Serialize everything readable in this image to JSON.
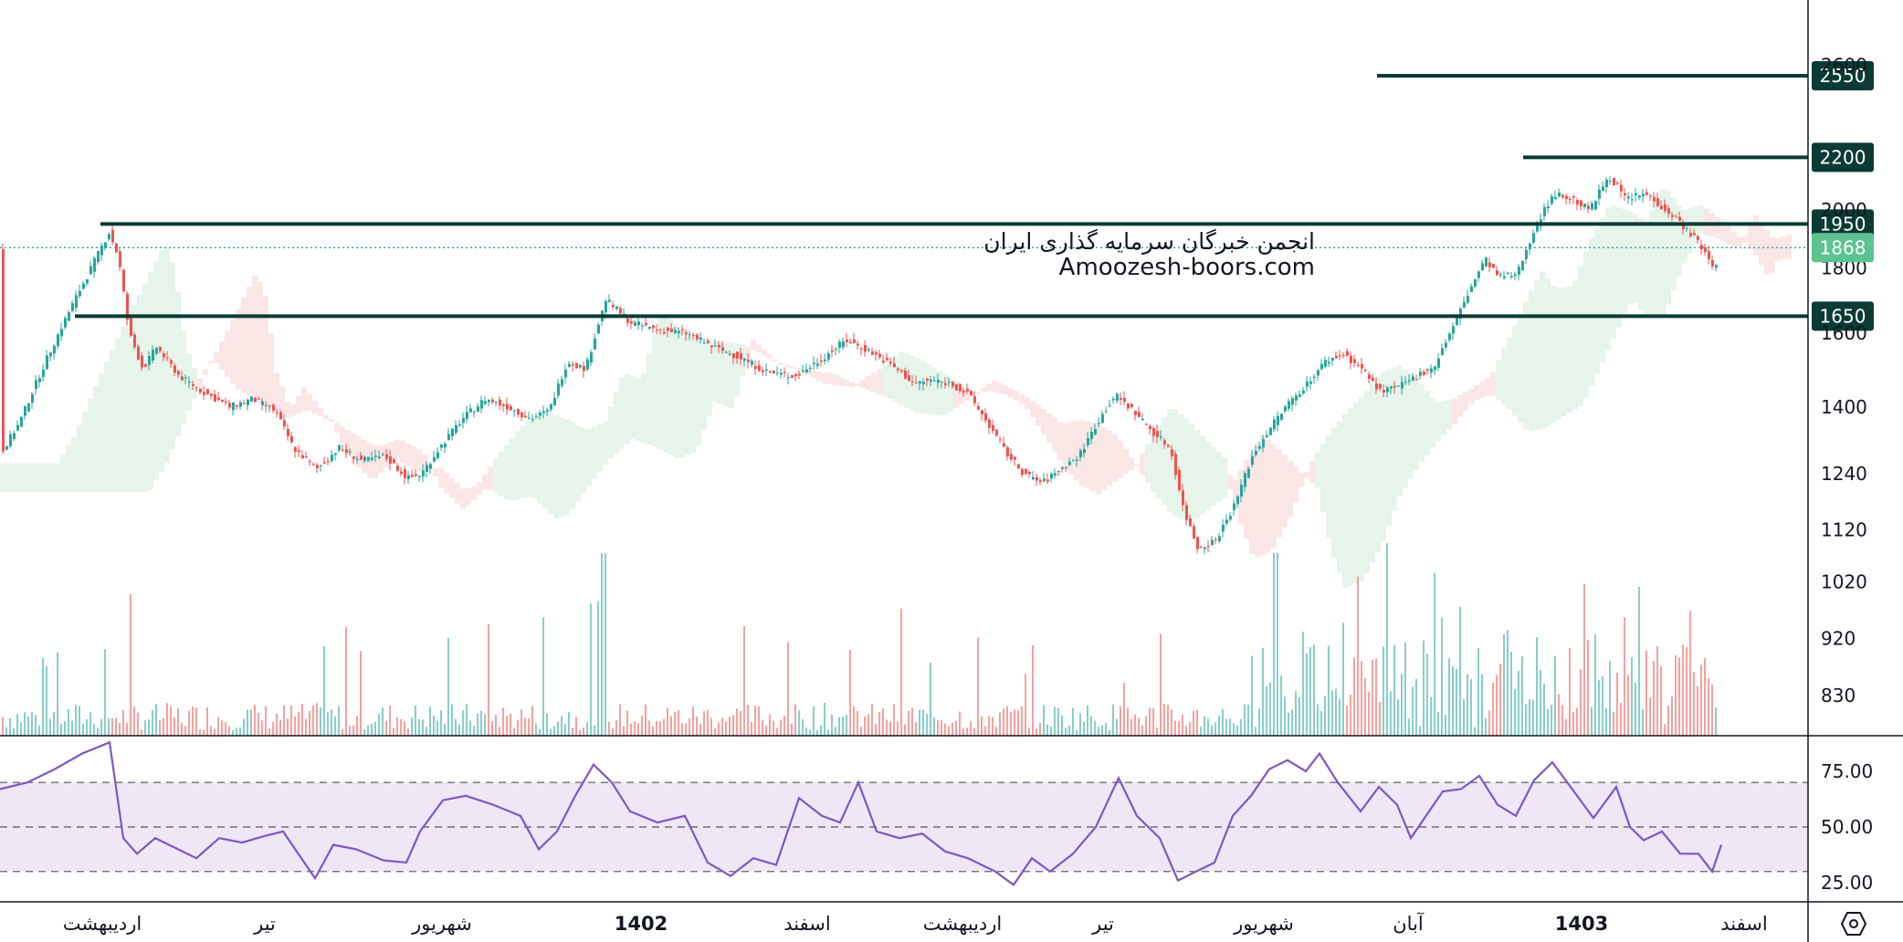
{
  "chart_data": {
    "type": "candlestick",
    "price_axis": {
      "ticks": [
        "830",
        "920",
        "1020",
        "1120",
        "1240",
        "1400",
        "1600",
        "1800",
        "2000",
        "2600"
      ],
      "scale": "log",
      "range": [
        770,
        2760
      ]
    },
    "time_axis": {
      "labels": [
        "اردیبهشت",
        "تیر",
        "شهریور",
        "1402",
        "اسفند",
        "اردیبهشت",
        "تیر",
        "شهریور",
        "آبان",
        "1403",
        "اسفند"
      ],
      "bold": [
        "1402",
        "1403"
      ]
    },
    "last_price": "1868",
    "levels": [
      {
        "value": "2550",
        "price": 2550
      },
      {
        "value": "2200",
        "price": 2200
      },
      {
        "value": "1950",
        "price": 1950
      },
      {
        "value": "1650",
        "price": 1650
      }
    ],
    "price_path": [
      [
        0,
        1290
      ],
      [
        20,
        1360
      ],
      [
        45,
        1500
      ],
      [
        70,
        1640
      ],
      [
        95,
        1780
      ],
      [
        118,
        1920
      ],
      [
        128,
        1840
      ],
      [
        140,
        1600
      ],
      [
        155,
        1500
      ],
      [
        170,
        1560
      ],
      [
        195,
        1480
      ],
      [
        220,
        1440
      ],
      [
        250,
        1400
      ],
      [
        275,
        1420
      ],
      [
        300,
        1390
      ],
      [
        320,
        1300
      ],
      [
        345,
        1250
      ],
      [
        370,
        1300
      ],
      [
        395,
        1270
      ],
      [
        420,
        1280
      ],
      [
        445,
        1230
      ],
      [
        460,
        1240
      ],
      [
        480,
        1300
      ],
      [
        505,
        1370
      ],
      [
        530,
        1420
      ],
      [
        555,
        1400
      ],
      [
        580,
        1370
      ],
      [
        600,
        1390
      ],
      [
        620,
        1520
      ],
      [
        640,
        1500
      ],
      [
        662,
        1700
      ],
      [
        690,
        1630
      ],
      [
        720,
        1610
      ],
      [
        750,
        1600
      ],
      [
        780,
        1560
      ],
      [
        810,
        1530
      ],
      [
        840,
        1490
      ],
      [
        870,
        1480
      ],
      [
        900,
        1530
      ],
      [
        925,
        1580
      ],
      [
        950,
        1550
      ],
      [
        975,
        1510
      ],
      [
        1000,
        1460
      ],
      [
        1020,
        1470
      ],
      [
        1040,
        1460
      ],
      [
        1060,
        1430
      ],
      [
        1080,
        1360
      ],
      [
        1100,
        1290
      ],
      [
        1120,
        1240
      ],
      [
        1140,
        1220
      ],
      [
        1160,
        1250
      ],
      [
        1180,
        1280
      ],
      [
        1200,
        1360
      ],
      [
        1220,
        1430
      ],
      [
        1240,
        1390
      ],
      [
        1260,
        1340
      ],
      [
        1280,
        1300
      ],
      [
        1295,
        1160
      ],
      [
        1310,
        1085
      ],
      [
        1330,
        1100
      ],
      [
        1350,
        1170
      ],
      [
        1370,
        1280
      ],
      [
        1390,
        1350
      ],
      [
        1410,
        1410
      ],
      [
        1430,
        1460
      ],
      [
        1450,
        1520
      ],
      [
        1470,
        1540
      ],
      [
        1490,
        1500
      ],
      [
        1510,
        1440
      ],
      [
        1530,
        1450
      ],
      [
        1550,
        1480
      ],
      [
        1570,
        1510
      ],
      [
        1590,
        1620
      ],
      [
        1610,
        1740
      ],
      [
        1625,
        1830
      ],
      [
        1640,
        1770
      ],
      [
        1660,
        1780
      ],
      [
        1680,
        1940
      ],
      [
        1700,
        2060
      ],
      [
        1720,
        2040
      ],
      [
        1740,
        2000
      ],
      [
        1760,
        2130
      ],
      [
        1780,
        2040
      ],
      [
        1800,
        2060
      ],
      [
        1820,
        2010
      ],
      [
        1840,
        1950
      ],
      [
        1860,
        1880
      ],
      [
        1875,
        1800
      ],
      [
        1885,
        1868
      ]
    ],
    "volume": {
      "max_label": "",
      "series_hint": "volume histogram"
    },
    "rsi": {
      "ticks": [
        "75.00",
        "50.00",
        "25.00"
      ],
      "bands": [
        70,
        50,
        30
      ],
      "path": [
        [
          0,
          67
        ],
        [
          30,
          70
        ],
        [
          60,
          76
        ],
        [
          90,
          83
        ],
        [
          120,
          88
        ],
        [
          135,
          45
        ],
        [
          150,
          38
        ],
        [
          170,
          45
        ],
        [
          195,
          40
        ],
        [
          215,
          36
        ],
        [
          240,
          45
        ],
        [
          265,
          43
        ],
        [
          290,
          46
        ],
        [
          310,
          48
        ],
        [
          330,
          36
        ],
        [
          345,
          27
        ],
        [
          365,
          42
        ],
        [
          390,
          40
        ],
        [
          420,
          35
        ],
        [
          445,
          34
        ],
        [
          460,
          48
        ],
        [
          485,
          62
        ],
        [
          510,
          64
        ],
        [
          540,
          60
        ],
        [
          570,
          55
        ],
        [
          590,
          40
        ],
        [
          610,
          48
        ],
        [
          630,
          64
        ],
        [
          650,
          78
        ],
        [
          670,
          70
        ],
        [
          690,
          57
        ],
        [
          720,
          52
        ],
        [
          750,
          55
        ],
        [
          775,
          34
        ],
        [
          800,
          28
        ],
        [
          825,
          36
        ],
        [
          850,
          33
        ],
        [
          875,
          63
        ],
        [
          900,
          55
        ],
        [
          920,
          52
        ],
        [
          940,
          70
        ],
        [
          960,
          48
        ],
        [
          985,
          45
        ],
        [
          1010,
          47
        ],
        [
          1035,
          39
        ],
        [
          1060,
          36
        ],
        [
          1090,
          30
        ],
        [
          1110,
          24
        ],
        [
          1130,
          36
        ],
        [
          1150,
          30
        ],
        [
          1175,
          38
        ],
        [
          1200,
          50
        ],
        [
          1225,
          72
        ],
        [
          1245,
          55
        ],
        [
          1270,
          45
        ],
        [
          1290,
          26
        ],
        [
          1310,
          30
        ],
        [
          1330,
          34
        ],
        [
          1350,
          55
        ],
        [
          1370,
          64
        ],
        [
          1390,
          76
        ],
        [
          1410,
          80
        ],
        [
          1430,
          75
        ],
        [
          1445,
          83
        ],
        [
          1465,
          70
        ],
        [
          1490,
          57
        ],
        [
          1510,
          68
        ],
        [
          1530,
          60
        ],
        [
          1545,
          45
        ],
        [
          1560,
          54
        ],
        [
          1580,
          66
        ],
        [
          1600,
          67
        ],
        [
          1620,
          73
        ],
        [
          1640,
          60
        ],
        [
          1660,
          55
        ],
        [
          1680,
          71
        ],
        [
          1700,
          79
        ],
        [
          1720,
          68
        ],
        [
          1745,
          54
        ],
        [
          1770,
          68
        ],
        [
          1785,
          50
        ],
        [
          1800,
          44
        ],
        [
          1820,
          48
        ],
        [
          1840,
          38
        ],
        [
          1860,
          38
        ],
        [
          1875,
          30
        ],
        [
          1885,
          42
        ]
      ]
    }
  },
  "watermark": {
    "line1": "انجمن خبرگان سرمایه گذاری ایران",
    "line2": "Amoozesh-boors.com"
  },
  "colors": {
    "up": "#26a69a",
    "down": "#ef5350",
    "level_line": "#0b3b34",
    "last_price_bg": "#5cc391",
    "rsi_line": "#7e57c2",
    "rsi_band": "#ede7f6",
    "cloud_up": "#e3f3e8",
    "cloud_down": "#fbe3e3"
  },
  "icons": {
    "settings": "settings-hexagon-icon"
  }
}
